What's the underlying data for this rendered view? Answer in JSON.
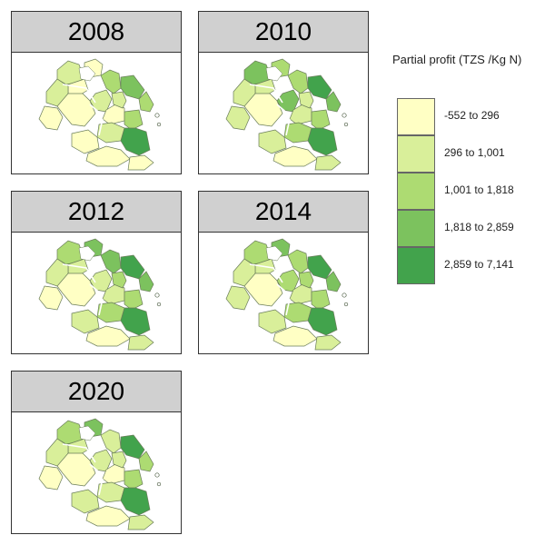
{
  "legend": {
    "title": "Partial profit (TZS /Kg N)",
    "classes": [
      {
        "label": "-552 to 296",
        "color": "#ffffc4"
      },
      {
        "label": "296 to 1,001",
        "color": "#d9ef9a"
      },
      {
        "label": "1,001 to 1,818",
        "color": "#addb72"
      },
      {
        "label": "1,818 to 2,859",
        "color": "#7cc25e"
      },
      {
        "label": "2,859 to 7,141",
        "color": "#42a34c"
      }
    ]
  },
  "panels": [
    {
      "year": "2008",
      "region_classes": [
        1,
        0,
        2,
        3,
        0,
        1,
        2,
        0,
        1,
        0,
        1,
        2,
        0,
        1,
        4,
        0,
        0,
        0
      ]
    },
    {
      "year": "2010",
      "region_classes": [
        3,
        2,
        2,
        4,
        1,
        1,
        3,
        0,
        3,
        1,
        1,
        2,
        1,
        2,
        4,
        1,
        0,
        1
      ]
    },
    {
      "year": "2012",
      "region_classes": [
        2,
        3,
        3,
        4,
        1,
        1,
        3,
        0,
        1,
        1,
        2,
        2,
        0,
        2,
        4,
        1,
        0,
        1
      ]
    },
    {
      "year": "2014",
      "region_classes": [
        2,
        3,
        2,
        4,
        1,
        1,
        3,
        0,
        2,
        1,
        2,
        2,
        1,
        2,
        4,
        1,
        0,
        1
      ]
    },
    {
      "year": "2020",
      "region_classes": [
        2,
        3,
        1,
        4,
        1,
        1,
        2,
        0,
        1,
        0,
        1,
        2,
        0,
        1,
        4,
        1,
        0,
        1
      ]
    }
  ]
}
